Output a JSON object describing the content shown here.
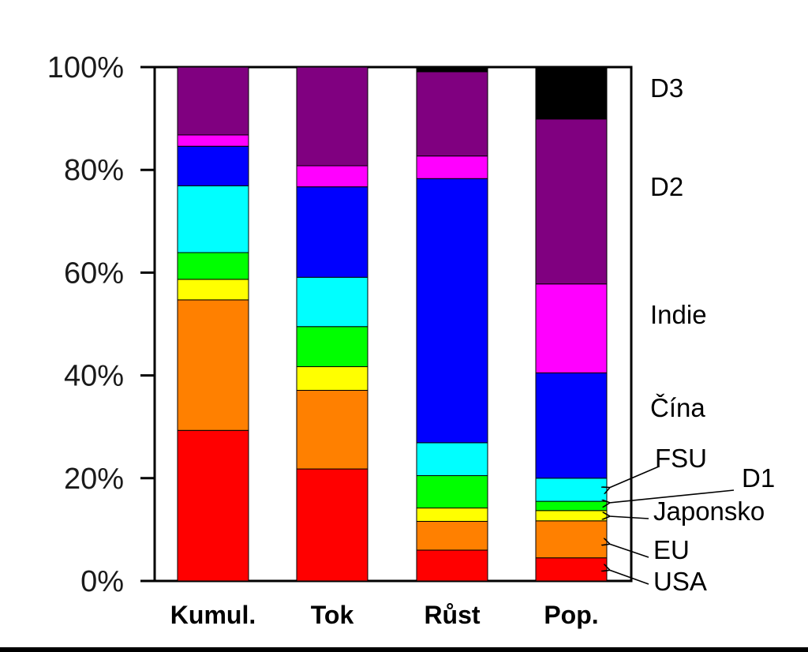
{
  "chart_data": {
    "type": "bar",
    "stacked": true,
    "percent": true,
    "categories": [
      "Kumul.",
      "Tok",
      "Růst",
      "Pop."
    ],
    "series": [
      {
        "name": "USA",
        "color": "#ff0000",
        "values": [
          29.3,
          21.8,
          6.0,
          4.5
        ]
      },
      {
        "name": "EU",
        "color": "#ff8000",
        "values": [
          25.4,
          15.3,
          5.6,
          7.2
        ]
      },
      {
        "name": "Japonsko",
        "color": "#ffff00",
        "values": [
          4.0,
          4.6,
          2.6,
          2.0
        ]
      },
      {
        "name": "D1",
        "color": "#00ff00",
        "values": [
          5.2,
          7.8,
          6.3,
          1.8
        ]
      },
      {
        "name": "FSU",
        "color": "#00ffff",
        "values": [
          13.0,
          9.6,
          6.4,
          4.5
        ]
      },
      {
        "name": "Čína",
        "color": "#0000ff",
        "values": [
          7.7,
          17.6,
          51.4,
          20.5
        ]
      },
      {
        "name": "Indie",
        "color": "#ff00ff",
        "values": [
          2.2,
          4.1,
          4.4,
          17.3
        ]
      },
      {
        "name": "D2",
        "color": "#800080",
        "values": [
          13.2,
          19.2,
          16.4,
          32.1
        ]
      },
      {
        "name": "D3",
        "color": "#000000",
        "values": [
          0.0,
          0.0,
          0.9,
          10.1
        ]
      }
    ],
    "yticks": [
      "0%",
      "20%",
      "40%",
      "60%",
      "80%",
      "100%"
    ],
    "ylim": [
      0,
      100
    ],
    "legend_placement": "right",
    "grid": false
  }
}
